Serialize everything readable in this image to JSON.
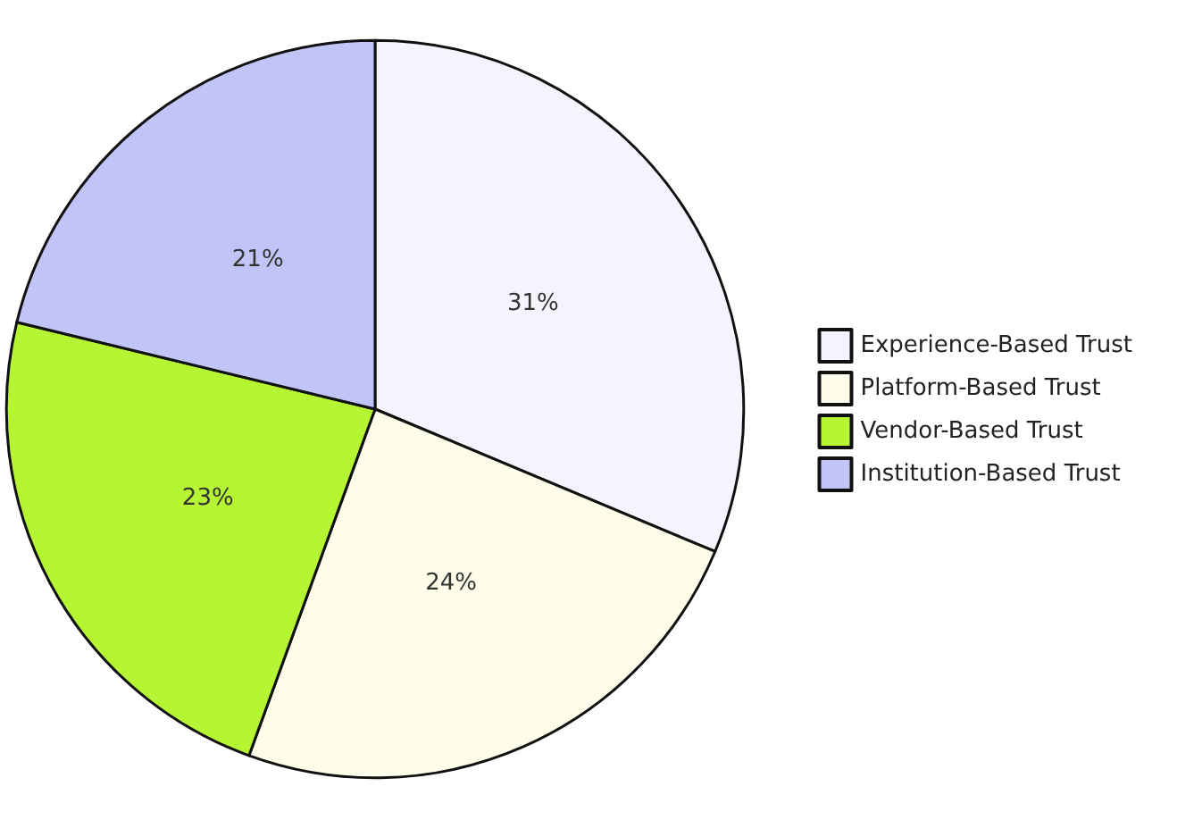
{
  "chart_data": {
    "type": "pie",
    "categories": [
      "Experience-Based Trust",
      "Platform-Based Trust",
      "Vendor-Based Trust",
      "Institution-Based Trust"
    ],
    "values": [
      31,
      24,
      23,
      21
    ],
    "colors": [
      "#f3f4fd",
      "#fdfde9",
      "#b5f533",
      "#c1c4f6"
    ],
    "value_labels": [
      "31%",
      "24%",
      "23%",
      "21%"
    ],
    "legend": "right"
  }
}
